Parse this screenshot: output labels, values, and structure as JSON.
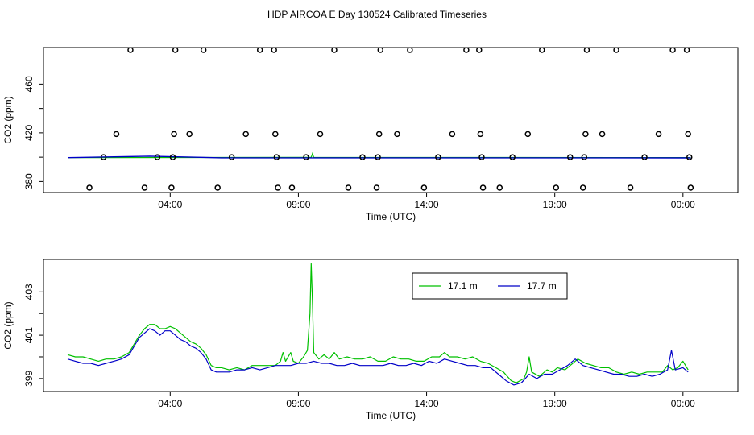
{
  "title": "HDP AIRCOA E  Day 130524  Calibrated Timeseries",
  "chart_data": [
    {
      "type": "scatter",
      "xlabel": "Time (UTC)",
      "ylabel": "CO2 (ppm)",
      "x_ticks": [
        "04:00",
        "09:00",
        "14:00",
        "19:00",
        "00:00"
      ],
      "x_tick_hours": [
        4,
        9,
        14,
        19,
        24
      ],
      "xlim": [
        0,
        25.2
      ],
      "y_ticks": [
        380,
        420,
        460
      ],
      "y_tick_values": [
        380,
        420,
        460
      ],
      "ylim": [
        371,
        490
      ],
      "calibration_points": [
        {
          "x": 0.85,
          "y": 375
        },
        {
          "x": 1.4,
          "y": 400
        },
        {
          "x": 1.9,
          "y": 419
        },
        {
          "x": 2.45,
          "y": 488
        },
        {
          "x": 3.0,
          "y": 375
        },
        {
          "x": 3.5,
          "y": 400
        },
        {
          "x": 4.05,
          "y": 375
        },
        {
          "x": 4.1,
          "y": 400
        },
        {
          "x": 4.15,
          "y": 419
        },
        {
          "x": 4.2,
          "y": 488
        },
        {
          "x": 4.75,
          "y": 419
        },
        {
          "x": 5.3,
          "y": 488
        },
        {
          "x": 5.85,
          "y": 375
        },
        {
          "x": 6.4,
          "y": 400
        },
        {
          "x": 6.95,
          "y": 419
        },
        {
          "x": 7.5,
          "y": 488
        },
        {
          "x": 8.05,
          "y": 488
        },
        {
          "x": 8.1,
          "y": 419
        },
        {
          "x": 8.15,
          "y": 400
        },
        {
          "x": 8.2,
          "y": 375
        },
        {
          "x": 8.75,
          "y": 375
        },
        {
          "x": 9.3,
          "y": 400
        },
        {
          "x": 9.85,
          "y": 419
        },
        {
          "x": 10.4,
          "y": 488
        },
        {
          "x": 10.95,
          "y": 375
        },
        {
          "x": 11.5,
          "y": 400
        },
        {
          "x": 12.05,
          "y": 375
        },
        {
          "x": 12.1,
          "y": 400
        },
        {
          "x": 12.15,
          "y": 419
        },
        {
          "x": 12.2,
          "y": 488
        },
        {
          "x": 12.85,
          "y": 419
        },
        {
          "x": 13.35,
          "y": 488
        },
        {
          "x": 13.9,
          "y": 375
        },
        {
          "x": 14.45,
          "y": 400
        },
        {
          "x": 15.0,
          "y": 419
        },
        {
          "x": 15.55,
          "y": 488
        },
        {
          "x": 16.05,
          "y": 488
        },
        {
          "x": 16.1,
          "y": 419
        },
        {
          "x": 16.15,
          "y": 400
        },
        {
          "x": 16.2,
          "y": 375
        },
        {
          "x": 16.85,
          "y": 375
        },
        {
          "x": 17.35,
          "y": 400
        },
        {
          "x": 17.95,
          "y": 419
        },
        {
          "x": 18.5,
          "y": 488
        },
        {
          "x": 19.05,
          "y": 375
        },
        {
          "x": 19.6,
          "y": 400
        },
        {
          "x": 20.1,
          "y": 375
        },
        {
          "x": 20.15,
          "y": 400
        },
        {
          "x": 20.2,
          "y": 419
        },
        {
          "x": 20.25,
          "y": 488
        },
        {
          "x": 20.85,
          "y": 419
        },
        {
          "x": 21.4,
          "y": 488
        },
        {
          "x": 21.95,
          "y": 375
        },
        {
          "x": 22.5,
          "y": 400
        },
        {
          "x": 23.05,
          "y": 419
        },
        {
          "x": 23.6,
          "y": 488
        },
        {
          "x": 24.15,
          "y": 488
        },
        {
          "x": 24.2,
          "y": 419
        },
        {
          "x": 24.25,
          "y": 400
        },
        {
          "x": 24.3,
          "y": 375
        }
      ],
      "green_line": [
        [
          0,
          399.6
        ],
        [
          9.5,
          399.8
        ],
        [
          9.55,
          403
        ],
        [
          9.6,
          399.8
        ],
        [
          24.3,
          399.7
        ]
      ],
      "blue_line": [
        [
          0,
          399.6
        ],
        [
          3.2,
          400.8
        ],
        [
          6,
          399.5
        ],
        [
          24.3,
          399.4
        ]
      ]
    },
    {
      "type": "line",
      "xlabel": "Time (UTC)",
      "ylabel": "CO2 (ppm)",
      "x_ticks": [
        "04:00",
        "09:00",
        "14:00",
        "19:00",
        "00:00"
      ],
      "x_tick_hours": [
        4,
        9,
        14,
        19,
        24
      ],
      "xlim": [
        0,
        25.2
      ],
      "y_ticks": [
        399,
        401,
        403
      ],
      "y_tick_values": [
        399,
        401,
        403
      ],
      "ylim": [
        398.4,
        404.5
      ],
      "legend_position": "top-center",
      "series": [
        {
          "name": "17.1 m",
          "color": "#00c000",
          "points": [
            [
              0.0,
              400.1
            ],
            [
              0.3,
              400.0
            ],
            [
              0.6,
              400.0
            ],
            [
              0.9,
              399.9
            ],
            [
              1.2,
              399.8
            ],
            [
              1.5,
              399.9
            ],
            [
              1.8,
              399.9
            ],
            [
              2.1,
              400.0
            ],
            [
              2.4,
              400.2
            ],
            [
              2.6,
              400.6
            ],
            [
              2.8,
              401.0
            ],
            [
              3.0,
              401.3
            ],
            [
              3.2,
              401.5
            ],
            [
              3.4,
              401.5
            ],
            [
              3.6,
              401.3
            ],
            [
              3.8,
              401.3
            ],
            [
              4.0,
              401.4
            ],
            [
              4.2,
              401.3
            ],
            [
              4.4,
              401.1
            ],
            [
              4.6,
              400.9
            ],
            [
              4.8,
              400.7
            ],
            [
              5.0,
              400.6
            ],
            [
              5.2,
              400.4
            ],
            [
              5.4,
              400.1
            ],
            [
              5.6,
              399.6
            ],
            [
              5.8,
              399.5
            ],
            [
              6.0,
              399.5
            ],
            [
              6.3,
              399.4
            ],
            [
              6.6,
              399.5
            ],
            [
              6.9,
              399.4
            ],
            [
              7.2,
              399.6
            ],
            [
              7.5,
              399.6
            ],
            [
              7.8,
              399.6
            ],
            [
              8.1,
              399.6
            ],
            [
              8.3,
              399.8
            ],
            [
              8.4,
              400.2
            ],
            [
              8.5,
              399.8
            ],
            [
              8.7,
              400.2
            ],
            [
              8.8,
              399.8
            ],
            [
              9.0,
              399.7
            ],
            [
              9.2,
              400.0
            ],
            [
              9.35,
              400.3
            ],
            [
              9.45,
              402.0
            ],
            [
              9.5,
              404.3
            ],
            [
              9.55,
              402.5
            ],
            [
              9.6,
              400.2
            ],
            [
              9.8,
              399.9
            ],
            [
              10.0,
              400.1
            ],
            [
              10.2,
              399.9
            ],
            [
              10.4,
              400.2
            ],
            [
              10.6,
              399.9
            ],
            [
              10.9,
              400.0
            ],
            [
              11.2,
              399.9
            ],
            [
              11.5,
              399.9
            ],
            [
              11.8,
              400.0
            ],
            [
              12.1,
              399.8
            ],
            [
              12.4,
              399.8
            ],
            [
              12.7,
              400.0
            ],
            [
              13.0,
              399.9
            ],
            [
              13.3,
              399.9
            ],
            [
              13.6,
              399.8
            ],
            [
              13.9,
              399.8
            ],
            [
              14.2,
              400.0
            ],
            [
              14.5,
              400.0
            ],
            [
              14.7,
              400.2
            ],
            [
              14.9,
              400.0
            ],
            [
              15.2,
              400.0
            ],
            [
              15.5,
              399.9
            ],
            [
              15.8,
              400.0
            ],
            [
              16.1,
              399.8
            ],
            [
              16.4,
              399.7
            ],
            [
              16.7,
              399.5
            ],
            [
              17.0,
              399.3
            ],
            [
              17.3,
              398.9
            ],
            [
              17.5,
              398.8
            ],
            [
              17.8,
              399.0
            ],
            [
              17.9,
              399.3
            ],
            [
              18.0,
              400.0
            ],
            [
              18.1,
              399.3
            ],
            [
              18.4,
              399.1
            ],
            [
              18.7,
              399.4
            ],
            [
              18.9,
              399.3
            ],
            [
              19.1,
              399.5
            ],
            [
              19.4,
              399.4
            ],
            [
              19.7,
              399.7
            ],
            [
              19.9,
              399.9
            ],
            [
              20.2,
              399.7
            ],
            [
              20.5,
              399.6
            ],
            [
              20.8,
              399.5
            ],
            [
              21.1,
              399.5
            ],
            [
              21.4,
              399.3
            ],
            [
              21.7,
              399.2
            ],
            [
              22.0,
              399.3
            ],
            [
              22.3,
              399.2
            ],
            [
              22.6,
              399.3
            ],
            [
              22.9,
              399.3
            ],
            [
              23.2,
              399.3
            ],
            [
              23.4,
              399.6
            ],
            [
              23.6,
              399.4
            ],
            [
              23.8,
              399.5
            ],
            [
              24.0,
              399.8
            ],
            [
              24.2,
              399.4
            ]
          ]
        },
        {
          "name": "17.7 m",
          "color": "#0000c8",
          "points": [
            [
              0.0,
              399.9
            ],
            [
              0.3,
              399.8
            ],
            [
              0.6,
              399.7
            ],
            [
              0.9,
              399.7
            ],
            [
              1.2,
              399.6
            ],
            [
              1.5,
              399.7
            ],
            [
              1.8,
              399.8
            ],
            [
              2.1,
              399.9
            ],
            [
              2.4,
              400.1
            ],
            [
              2.6,
              400.5
            ],
            [
              2.8,
              400.9
            ],
            [
              3.0,
              401.1
            ],
            [
              3.2,
              401.3
            ],
            [
              3.4,
              401.2
            ],
            [
              3.6,
              401.0
            ],
            [
              3.8,
              401.2
            ],
            [
              4.0,
              401.2
            ],
            [
              4.2,
              401.0
            ],
            [
              4.4,
              400.8
            ],
            [
              4.6,
              400.7
            ],
            [
              4.8,
              400.5
            ],
            [
              5.0,
              400.4
            ],
            [
              5.2,
              400.2
            ],
            [
              5.4,
              399.9
            ],
            [
              5.6,
              399.4
            ],
            [
              5.8,
              399.3
            ],
            [
              6.0,
              399.3
            ],
            [
              6.3,
              399.3
            ],
            [
              6.6,
              399.4
            ],
            [
              6.9,
              399.4
            ],
            [
              7.2,
              399.5
            ],
            [
              7.5,
              399.4
            ],
            [
              7.8,
              399.5
            ],
            [
              8.1,
              399.6
            ],
            [
              8.4,
              399.6
            ],
            [
              8.7,
              399.6
            ],
            [
              9.0,
              399.7
            ],
            [
              9.3,
              399.7
            ],
            [
              9.6,
              399.8
            ],
            [
              9.9,
              399.7
            ],
            [
              10.2,
              399.7
            ],
            [
              10.5,
              399.6
            ],
            [
              10.8,
              399.6
            ],
            [
              11.1,
              399.7
            ],
            [
              11.4,
              399.6
            ],
            [
              11.7,
              399.6
            ],
            [
              12.0,
              399.6
            ],
            [
              12.3,
              399.6
            ],
            [
              12.6,
              399.7
            ],
            [
              12.9,
              399.6
            ],
            [
              13.2,
              399.6
            ],
            [
              13.5,
              399.7
            ],
            [
              13.8,
              399.6
            ],
            [
              14.1,
              399.8
            ],
            [
              14.4,
              399.7
            ],
            [
              14.7,
              399.9
            ],
            [
              15.0,
              399.8
            ],
            [
              15.3,
              399.7
            ],
            [
              15.6,
              399.6
            ],
            [
              15.9,
              399.6
            ],
            [
              16.2,
              399.5
            ],
            [
              16.5,
              399.5
            ],
            [
              16.8,
              399.2
            ],
            [
              17.1,
              398.9
            ],
            [
              17.4,
              398.7
            ],
            [
              17.7,
              398.8
            ],
            [
              18.0,
              399.2
            ],
            [
              18.3,
              399.0
            ],
            [
              18.6,
              399.2
            ],
            [
              18.9,
              399.2
            ],
            [
              19.2,
              399.4
            ],
            [
              19.5,
              399.6
            ],
            [
              19.8,
              399.9
            ],
            [
              20.1,
              399.6
            ],
            [
              20.4,
              399.5
            ],
            [
              20.7,
              399.4
            ],
            [
              21.0,
              399.3
            ],
            [
              21.3,
              399.2
            ],
            [
              21.6,
              399.2
            ],
            [
              21.9,
              399.1
            ],
            [
              22.2,
              399.1
            ],
            [
              22.5,
              399.2
            ],
            [
              22.8,
              399.1
            ],
            [
              23.1,
              399.2
            ],
            [
              23.4,
              399.4
            ],
            [
              23.55,
              400.3
            ],
            [
              23.7,
              399.4
            ],
            [
              24.0,
              399.5
            ],
            [
              24.2,
              399.3
            ]
          ]
        }
      ]
    }
  ]
}
